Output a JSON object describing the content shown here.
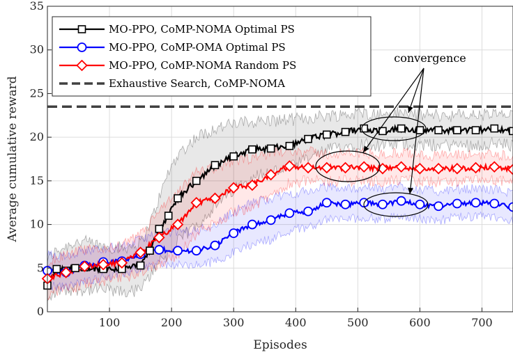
{
  "chart_data": {
    "type": "line",
    "xlabel": "Episodes",
    "ylabel": "Average cumulative reward",
    "xlim": [
      0,
      750
    ],
    "ylim": [
      0,
      35
    ],
    "xticks": [
      100,
      200,
      300,
      400,
      500,
      600,
      700
    ],
    "yticks": [
      0,
      5,
      10,
      15,
      20,
      25,
      30,
      35
    ],
    "grid": true,
    "legend_position": "top-left",
    "annotation": "convergence",
    "reference_line": {
      "name": "Exhaustive Search, CoMP-NOMA",
      "y": 23.5,
      "color": "#404040"
    },
    "series": [
      {
        "name": "MO-PPO, CoMP-NOMA Optimal PS",
        "color": "#000000",
        "marker": "square",
        "x": [
          0,
          15,
          30,
          45,
          60,
          90,
          120,
          150,
          165,
          180,
          195,
          210,
          240,
          270,
          300,
          330,
          360,
          390,
          420,
          450,
          480,
          510,
          540,
          570,
          600,
          630,
          660,
          690,
          720,
          750
        ],
        "y": [
          3,
          4.9,
          4.7,
          5.0,
          5.1,
          4.9,
          4.9,
          5.3,
          7.0,
          9.5,
          11.0,
          13.0,
          15.0,
          16.8,
          17.8,
          18.6,
          18.7,
          19.0,
          19.8,
          20.3,
          20.6,
          21.0,
          20.7,
          21.0,
          20.8,
          20.8,
          20.8,
          20.8,
          21.0,
          20.7
        ],
        "band": {
          "upper": [
            6,
            7,
            7.5,
            8,
            8,
            7.5,
            7.3,
            7.8,
            10,
            13,
            16,
            18,
            20,
            21,
            21.5,
            21.8,
            21.9,
            22,
            22.2,
            22.5,
            22.6,
            22.8,
            22.6,
            22.8,
            22.6,
            22.5,
            22.5,
            22.5,
            22.6,
            22.4
          ],
          "lower": [
            1,
            2.5,
            2.5,
            2.6,
            2.5,
            2.5,
            2.2,
            2.5,
            4,
            6,
            6.5,
            8,
            10,
            12,
            14,
            15.5,
            16,
            16.5,
            17.5,
            18.5,
            19,
            19.3,
            19.0,
            19.3,
            19.1,
            19.1,
            19.1,
            19.1,
            19.3,
            19.0
          ]
        }
      },
      {
        "name": "MO-PPO, CoMP-OMA Optimal PS",
        "color": "#0000ff",
        "marker": "circle",
        "x": [
          0,
          30,
          60,
          90,
          120,
          150,
          180,
          210,
          240,
          270,
          300,
          330,
          360,
          390,
          420,
          450,
          480,
          510,
          540,
          570,
          600,
          630,
          660,
          690,
          720,
          750
        ],
        "y": [
          4.7,
          4.5,
          5.3,
          5.7,
          5.8,
          6.6,
          7.1,
          7.0,
          7.0,
          7.6,
          9.0,
          10.0,
          10.5,
          11.3,
          11.5,
          12.5,
          12.3,
          12.5,
          12.3,
          12.7,
          12.3,
          12.1,
          12.4,
          12.5,
          12.4,
          12.0
        ],
        "band": {
          "upper": [
            6.5,
            6.5,
            7.0,
            7.3,
            7.4,
            8.3,
            9.0,
            9.2,
            9.3,
            10,
            11.5,
            12.5,
            13.0,
            13.5,
            13.8,
            14.3,
            14.1,
            14.3,
            14.0,
            14.5,
            14.0,
            13.8,
            14.0,
            14.1,
            14.0,
            13.6
          ],
          "lower": [
            3.0,
            2.8,
            3.5,
            4.0,
            4.3,
            5.0,
            5.5,
            5.3,
            5.3,
            5.8,
            6.8,
            7.8,
            8.3,
            9.3,
            9.7,
            10.6,
            10.6,
            10.8,
            10.6,
            11.0,
            10.6,
            10.5,
            10.8,
            10.9,
            10.8,
            10.5
          ]
        }
      },
      {
        "name": "MO-PPO, CoMP-NOMA Random PS",
        "color": "#ff0000",
        "marker": "diamond",
        "x": [
          0,
          30,
          60,
          90,
          120,
          150,
          180,
          210,
          240,
          270,
          300,
          330,
          360,
          390,
          420,
          450,
          480,
          510,
          540,
          570,
          600,
          630,
          660,
          690,
          720,
          750
        ],
        "y": [
          3.8,
          4.5,
          5.2,
          5.4,
          5.6,
          6.8,
          8.5,
          10.0,
          12.5,
          13.0,
          14.2,
          14.5,
          15.7,
          16.7,
          16.5,
          16.5,
          16.5,
          16.6,
          16.4,
          16.6,
          16.4,
          16.4,
          16.4,
          16.5,
          16.6,
          16.3
        ],
        "band": {
          "upper": [
            5.8,
            6.5,
            7.0,
            7.3,
            7.5,
            8.8,
            11.5,
            13.5,
            16.0,
            16.5,
            17.2,
            17.5,
            18.2,
            18.6,
            18.3,
            18.1,
            18.1,
            18.2,
            18.0,
            18.2,
            18.0,
            17.9,
            17.9,
            18.0,
            18.1,
            17.8
          ],
          "lower": [
            2.0,
            2.5,
            3.2,
            3.5,
            3.8,
            4.6,
            5.5,
            6.5,
            9.0,
            10.0,
            11.5,
            12.0,
            13.3,
            14.8,
            15.0,
            15.0,
            15.0,
            15.1,
            14.9,
            15.1,
            14.9,
            14.9,
            14.9,
            15.0,
            15.1,
            14.8
          ]
        }
      }
    ]
  }
}
